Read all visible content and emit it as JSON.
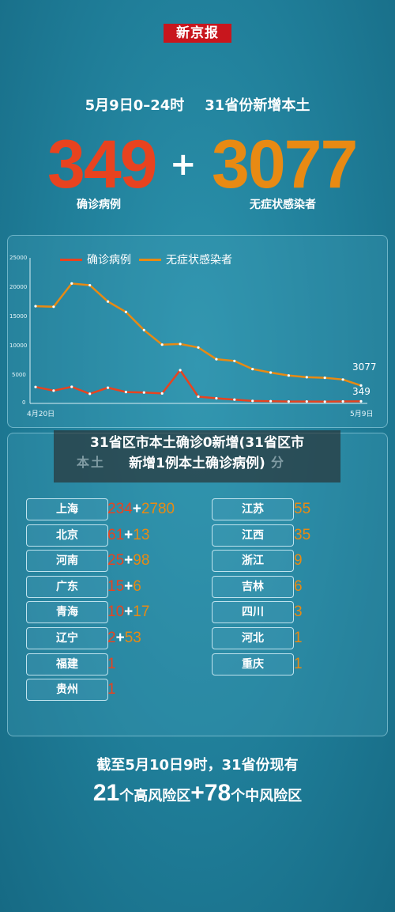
{
  "brand": "新京报",
  "header": {
    "date_range": "5月9日0–24时",
    "scope": "31省份新增本土",
    "confirmed": "349",
    "plus": "+",
    "asymptomatic": "3077",
    "confirmed_label": "确诊病例",
    "asymptomatic_label": "无症状感染者"
  },
  "colors": {
    "confirmed": "#e8431f",
    "asymptomatic": "#e88a13"
  },
  "chart_data": {
    "type": "line",
    "x_start_label": "4月20日",
    "x_end_label": "5月9日",
    "y_ticks": [
      "25000",
      "20000",
      "15000",
      "10000",
      "5000",
      "0"
    ],
    "ylim": [
      0,
      25000
    ],
    "series": [
      {
        "name": "确诊病例",
        "color": "#e8431f",
        "values": [
          2830,
          2190,
          2850,
          1650,
          2700,
          1950,
          1880,
          1710,
          5700,
          1150,
          880,
          650,
          420,
          380,
          330,
          320,
          300,
          340,
          349
        ]
      },
      {
        "name": "无症状感染者",
        "color": "#e88a13",
        "values": [
          16700,
          16600,
          20600,
          20300,
          17500,
          15700,
          12600,
          10100,
          10200,
          9600,
          7600,
          7300,
          5900,
          5300,
          4800,
          4500,
          4400,
          4100,
          3077
        ]
      }
    ],
    "end_labels": {
      "asymptomatic": "3077",
      "confirmed": "349"
    }
  },
  "overlay": {
    "ghost": "本土",
    "ghost_tail": "分",
    "line1": "31省区市本土确诊0新增(31省区市",
    "line2": "新增1例本土确诊病例)"
  },
  "provinces_left": [
    {
      "name": "上海",
      "confirmed": "234",
      "plus": "+",
      "asymptomatic": "2780"
    },
    {
      "name": "北京",
      "confirmed": "61",
      "plus": "+",
      "asymptomatic": "13"
    },
    {
      "name": "河南",
      "confirmed": "25",
      "plus": "+",
      "asymptomatic": "98"
    },
    {
      "name": "广东",
      "confirmed": "15",
      "plus": "+",
      "asymptomatic": "6"
    },
    {
      "name": "青海",
      "confirmed": "10",
      "plus": "+",
      "asymptomatic": "17"
    },
    {
      "name": "辽宁",
      "confirmed": "2",
      "plus": "+",
      "asymptomatic": "53"
    },
    {
      "name": "福建",
      "confirmed": "1",
      "plus": "",
      "asymptomatic": ""
    },
    {
      "name": "贵州",
      "confirmed": "1",
      "plus": "",
      "asymptomatic": ""
    }
  ],
  "provinces_right": [
    {
      "name": "江苏",
      "asymptomatic": "55"
    },
    {
      "name": "江西",
      "asymptomatic": "35"
    },
    {
      "name": "浙江",
      "asymptomatic": "9"
    },
    {
      "name": "吉林",
      "asymptomatic": "6"
    },
    {
      "name": "四川",
      "asymptomatic": "3"
    },
    {
      "name": "河北",
      "asymptomatic": "1"
    },
    {
      "name": "重庆",
      "asymptomatic": "1"
    }
  ],
  "footer": {
    "line1": "截至5月10日9时，31省份现有",
    "high_count": "21",
    "high_label": "个高风险区",
    "plus": "+",
    "mid_count": "78",
    "mid_label": "个中风险区"
  }
}
